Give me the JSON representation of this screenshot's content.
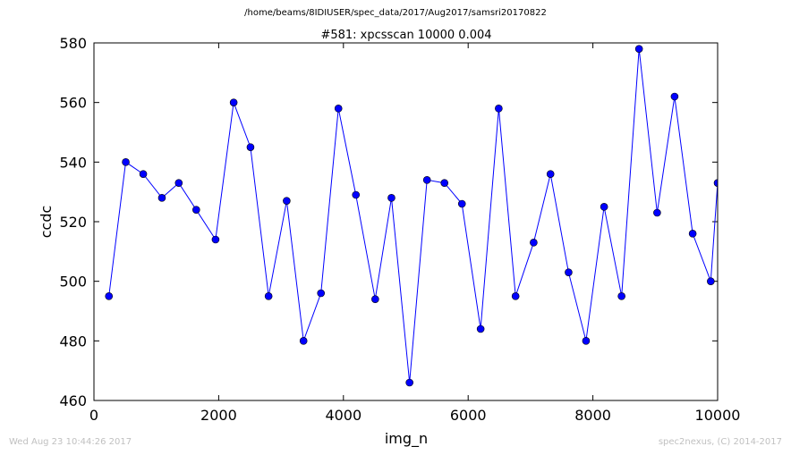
{
  "page": {
    "suptitle": "/home/beams/8IDIUSER/spec_data/2017/Aug2017/samsri20170822",
    "timestamp": "Wed Aug 23 10:44:26 2017",
    "credit": "spec2nexus, (C) 2014-2017"
  },
  "chart_data": {
    "type": "line",
    "title": "#581: xpcsscan 10000 0.004",
    "xlabel": "img_n",
    "ylabel": "ccdc",
    "xlim": [
      0,
      10000
    ],
    "ylim": [
      460,
      580
    ],
    "xticks": [
      0,
      2000,
      4000,
      6000,
      8000,
      10000
    ],
    "yticks": [
      460,
      480,
      500,
      520,
      540,
      560,
      580
    ],
    "grid": false,
    "line_color": "#0000ff",
    "marker_color": "#0000ff",
    "series": [
      {
        "x": [
          240,
          510,
          790,
          1090,
          1360,
          1640,
          1950,
          2240,
          2510,
          2800,
          3090,
          3360,
          3640,
          3920,
          4200,
          4510,
          4770,
          5060,
          5340,
          5620,
          5900,
          6200,
          6490,
          6760,
          7050,
          7320,
          7610,
          7890,
          8180,
          8460,
          8740,
          9030,
          9310,
          9600,
          9890,
          10000
        ],
        "y": [
          495,
          540,
          536,
          528,
          533,
          524,
          514,
          560,
          545,
          495,
          527,
          480,
          496,
          558,
          529,
          494,
          528,
          466,
          534,
          533,
          526,
          484,
          558,
          495,
          513,
          536,
          503,
          480,
          525,
          495,
          578,
          523,
          562,
          516,
          500,
          533
        ]
      }
    ]
  }
}
